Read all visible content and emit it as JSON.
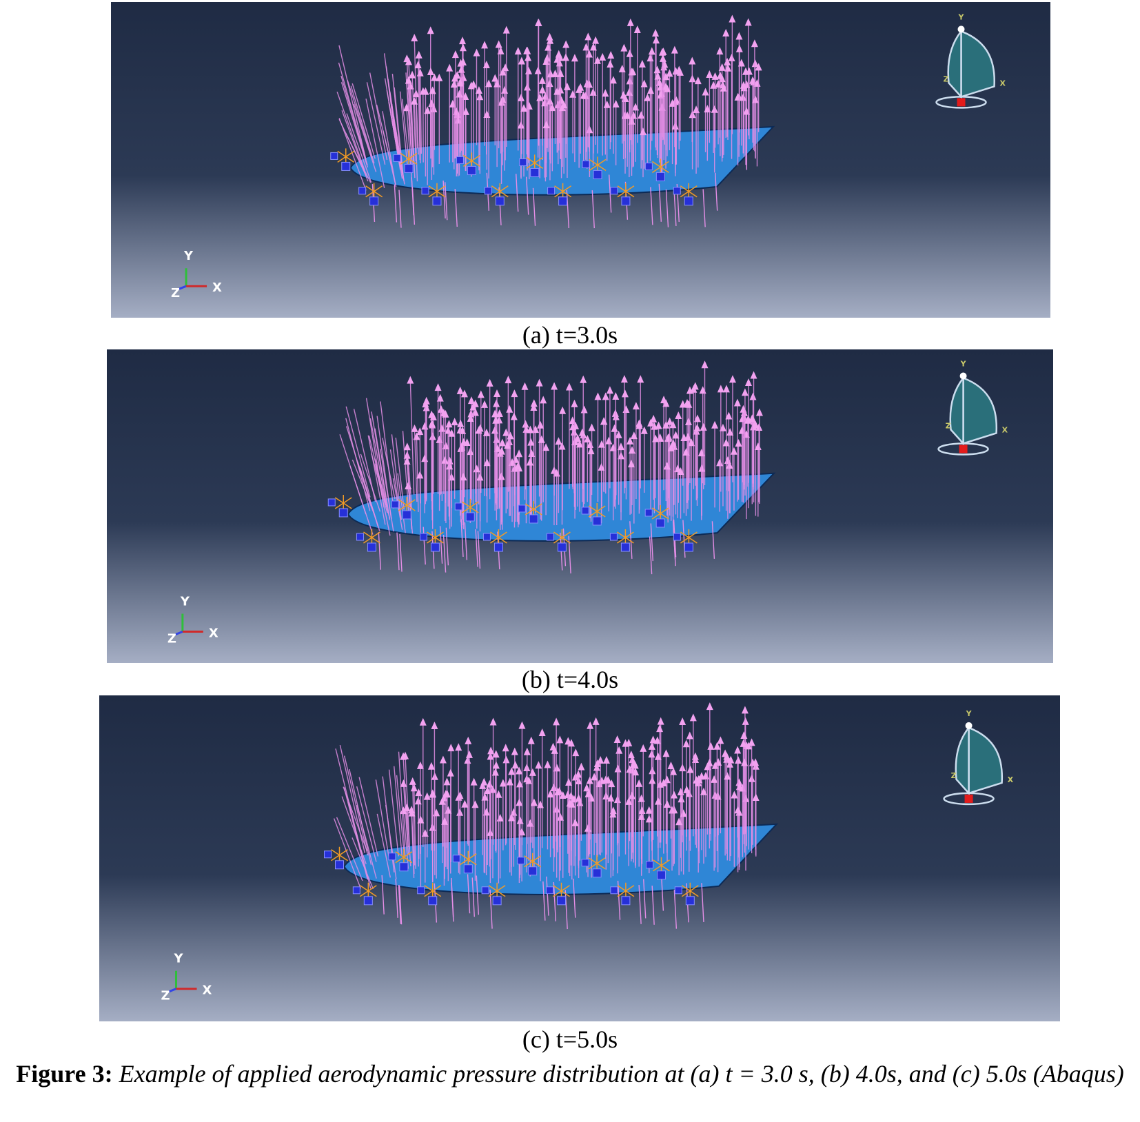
{
  "panels": [
    {
      "caption": "(a) t=3.0s",
      "triad": {
        "y": "Y",
        "z": "Z",
        "x": "X"
      },
      "view_cube": {
        "y": "Y",
        "z": "Z",
        "x": "X"
      }
    },
    {
      "caption": "(b) t=4.0s",
      "triad": {
        "y": "Y",
        "z": "Z",
        "x": "X"
      },
      "view_cube": {
        "y": "Y",
        "z": "Z",
        "x": "X"
      }
    },
    {
      "caption": "(c) t=5.0s",
      "triad": {
        "y": "Y",
        "z": "Z",
        "x": "X"
      },
      "view_cube": {
        "y": "Y",
        "z": "Z",
        "x": "X"
      }
    }
  ],
  "figure_caption": {
    "label": "Figure 3:",
    "text": "Example of applied aerodynamic pressure distribution at (a) t = 3.0 s, (b) 4.0s, and (c) 5.0s (Abaqus)"
  }
}
